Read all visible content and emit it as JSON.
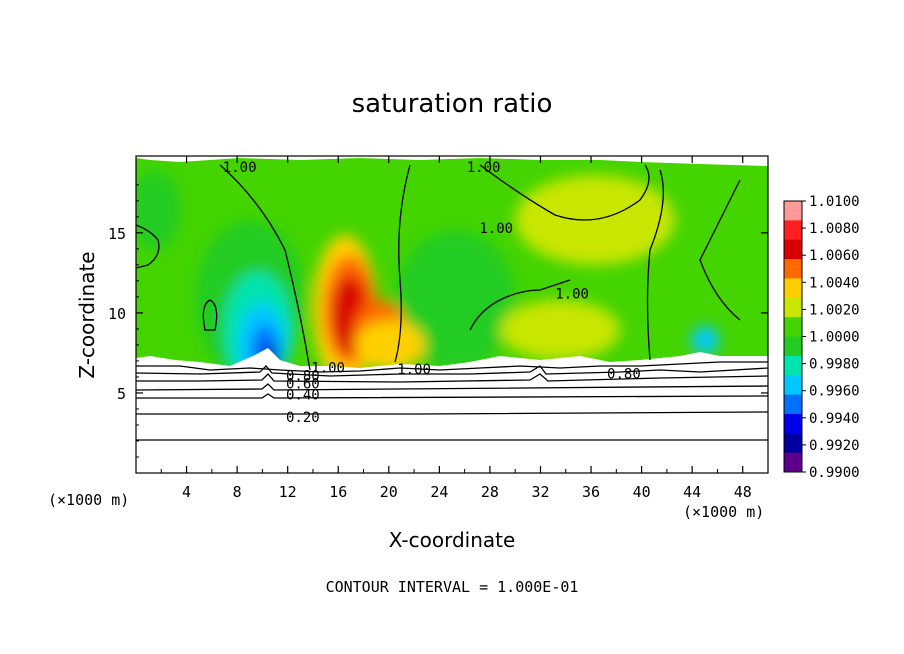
{
  "chart_data": {
    "type": "heatmap",
    "title": "saturation ratio",
    "xlabel": "X-coordinate",
    "ylabel": "Z-coordinate",
    "x_unit": "(×1000 m)",
    "x_unit_right": "(×1000 m)",
    "footer": "CONTOUR INTERVAL = 1.000E-01",
    "xlim": [
      0,
      50
    ],
    "ylim": [
      0,
      19.8
    ],
    "x_ticks": [
      {
        "value": 4,
        "label": "4"
      },
      {
        "value": 8,
        "label": "8"
      },
      {
        "value": 12,
        "label": "12"
      },
      {
        "value": 16,
        "label": "16"
      },
      {
        "value": 20,
        "label": "20"
      },
      {
        "value": 24,
        "label": "24"
      },
      {
        "value": 28,
        "label": "28"
      },
      {
        "value": 32,
        "label": "32"
      },
      {
        "value": 36,
        "label": "36"
      },
      {
        "value": 40,
        "label": "40"
      },
      {
        "value": 44,
        "label": "44"
      },
      {
        "value": 48,
        "label": "48"
      }
    ],
    "y_ticks": [
      {
        "value": 5,
        "label": "5"
      },
      {
        "value": 10,
        "label": "10"
      },
      {
        "value": 15,
        "label": "15"
      }
    ],
    "colorbar": {
      "levels": [
        "1.0100",
        "1.0080",
        "1.0060",
        "1.0040",
        "1.0020",
        "1.0000",
        "0.9980",
        "0.9960",
        "0.9940",
        "0.9920",
        "0.9900"
      ],
      "colors": [
        "#ff9a9a",
        "#ff2020",
        "#d80000",
        "#ff6a00",
        "#ffd000",
        "#c8e600",
        "#44d400",
        "#22cc22",
        "#00e4b0",
        "#00c8ff",
        "#0070ff",
        "#0000e8",
        "#0000a0",
        "#5c008c"
      ]
    },
    "contour_labels": [
      {
        "text": "1.00",
        "x": 8.2,
        "y": 19.1
      },
      {
        "text": "1.00",
        "x": 27.5,
        "y": 19.1
      },
      {
        "text": "1.00",
        "x": 28.5,
        "y": 15.3
      },
      {
        "text": "1.00",
        "x": 34.5,
        "y": 11.2
      },
      {
        "text": "1.00",
        "x": 15.2,
        "y": 6.6
      },
      {
        "text": "1.00",
        "x": 22.0,
        "y": 6.5
      },
      {
        "text": "0.80",
        "x": 38.6,
        "y": 6.2
      },
      {
        "text": "0.80",
        "x": 13.2,
        "y": 6.1
      },
      {
        "text": "0.60",
        "x": 13.2,
        "y": 5.6
      },
      {
        "text": "0.40",
        "x": 13.2,
        "y": 4.9
      },
      {
        "text": "0.20",
        "x": 13.2,
        "y": 3.5
      }
    ],
    "features": [
      {
        "name": "dry-core",
        "x": 11.0,
        "z": 8.5,
        "min_value": 0.99
      },
      {
        "name": "moist-plume",
        "x": 17.5,
        "z": 9.5,
        "max_value": 1.008
      }
    ]
  }
}
